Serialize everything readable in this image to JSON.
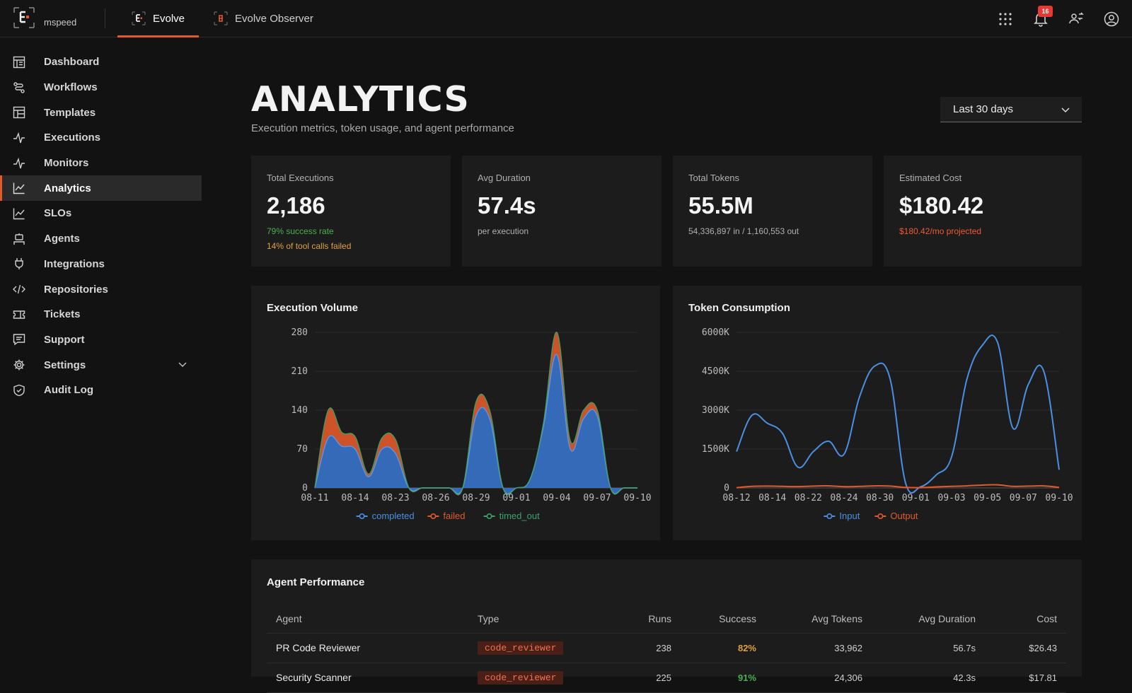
{
  "topbar": {
    "org_name": "mspeed",
    "tabs": [
      {
        "label": "Evolve",
        "active": true
      },
      {
        "label": "Evolve Observer",
        "active": false
      }
    ],
    "notification_count": "16",
    "icons": [
      "apps-grid-icon",
      "bell-icon",
      "switch-user-icon",
      "user-account-icon"
    ]
  },
  "sidebar": {
    "items": [
      {
        "label": "Dashboard",
        "icon": "dashboard-icon"
      },
      {
        "label": "Workflows",
        "icon": "workflow-icon"
      },
      {
        "label": "Templates",
        "icon": "template-icon"
      },
      {
        "label": "Executions",
        "icon": "pulse-icon"
      },
      {
        "label": "Monitors",
        "icon": "pulse-icon"
      },
      {
        "label": "Analytics",
        "icon": "chart-line-icon",
        "active": true
      },
      {
        "label": "SLOs",
        "icon": "chart-line-icon"
      },
      {
        "label": "Agents",
        "icon": "robot-icon"
      },
      {
        "label": "Integrations",
        "icon": "plug-icon"
      },
      {
        "label": "Repositories",
        "icon": "code-icon"
      },
      {
        "label": "Tickets",
        "icon": "ticket-icon"
      },
      {
        "label": "Support",
        "icon": "chat-icon"
      },
      {
        "label": "Settings",
        "icon": "gear-icon",
        "expandable": true
      },
      {
        "label": "Audit Log",
        "icon": "shield-icon"
      }
    ]
  },
  "page": {
    "title": "ANALYTICS",
    "subtitle": "Execution metrics, token usage, and agent performance",
    "range": "Last 30 days"
  },
  "stats": [
    {
      "label": "Total Executions",
      "value": "2,186",
      "line1": "79% success rate",
      "line2": "14% of tool calls failed"
    },
    {
      "label": "Avg Duration",
      "value": "57.4s",
      "line1": "per execution",
      "line2": ""
    },
    {
      "label": "Total Tokens",
      "value": "55.5M",
      "line1": "54,336,897 in / 1,160,553 out",
      "line2": ""
    },
    {
      "label": "Estimated Cost",
      "value": "$180.42",
      "line1": "$180.42/mo projected",
      "line2": ""
    }
  ],
  "colors": {
    "accent": "#e25a2c",
    "completed": "#3a78d4",
    "failed": "#e35a2a",
    "timed_out": "#3aa36b",
    "input": "#4a90e2",
    "output": "#e25a2c",
    "success_green": "#4caf50",
    "warn_yellow": "#e0a040",
    "cost_red": "#ef5a33"
  },
  "chart_data": [
    {
      "type": "area",
      "title": "Execution Volume",
      "stacked": true,
      "ylim": [
        0,
        280
      ],
      "yticks": [
        0,
        70,
        140,
        210,
        280
      ],
      "tick_labels": [
        "08-11",
        "08-14",
        "08-23",
        "08-26",
        "08-29",
        "09-01",
        "09-04",
        "09-07",
        "09-10"
      ],
      "categories": [
        "08-11",
        "08-12",
        "08-13",
        "08-14",
        "08-15",
        "08-22",
        "08-23",
        "08-24",
        "08-25",
        "08-26",
        "08-27",
        "08-28",
        "08-29",
        "08-30",
        "08-31",
        "09-01",
        "09-02",
        "09-03",
        "09-04",
        "09-05",
        "09-06",
        "09-07",
        "09-08",
        "09-09",
        "09-10"
      ],
      "series": [
        {
          "name": "completed",
          "values": [
            0,
            90,
            75,
            70,
            20,
            70,
            62,
            0,
            0,
            0,
            0,
            0,
            130,
            125,
            0,
            0,
            15,
            110,
            240,
            70,
            125,
            130,
            0,
            0,
            0
          ]
        },
        {
          "name": "failed",
          "values": [
            0,
            50,
            25,
            22,
            5,
            20,
            25,
            0,
            0,
            0,
            0,
            0,
            25,
            15,
            0,
            0,
            0,
            5,
            40,
            15,
            15,
            10,
            0,
            0,
            0
          ]
        },
        {
          "name": "timed_out",
          "values": [
            0,
            0,
            0,
            0,
            0,
            0,
            0,
            0,
            0,
            0,
            0,
            0,
            0,
            0,
            0,
            0,
            0,
            0,
            0,
            0,
            0,
            0,
            0,
            0,
            0
          ]
        }
      ]
    },
    {
      "type": "line",
      "title": "Token Consumption",
      "ylim": [
        0,
        6000
      ],
      "yticks": [
        0,
        1500,
        3000,
        4500,
        6000
      ],
      "ytick_labels": [
        "0",
        "1500K",
        "3000K",
        "4500K",
        "6000K"
      ],
      "tick_labels": [
        "08-12",
        "08-14",
        "08-22",
        "08-24",
        "08-30",
        "09-01",
        "09-03",
        "09-05",
        "09-07",
        "09-10"
      ],
      "categories": [
        "08-11",
        "08-12",
        "08-13",
        "08-14",
        "08-15",
        "08-22",
        "08-23",
        "08-24",
        "08-25",
        "08-26",
        "08-30",
        "08-31",
        "09-01",
        "09-02",
        "09-03",
        "09-04",
        "09-05",
        "09-06",
        "09-07",
        "09-08",
        "09-09",
        "09-10"
      ],
      "series": [
        {
          "name": "Input",
          "values": [
            1400,
            2800,
            2500,
            2100,
            800,
            1400,
            1800,
            1300,
            3500,
            4700,
            4200,
            200,
            50,
            500,
            1200,
            4200,
            5500,
            5600,
            2300,
            4000,
            4500,
            700
          ]
        },
        {
          "name": "Output",
          "values": [
            10,
            60,
            70,
            60,
            50,
            70,
            80,
            50,
            60,
            80,
            70,
            20,
            10,
            40,
            60,
            80,
            110,
            120,
            60,
            70,
            80,
            20
          ]
        }
      ]
    }
  ],
  "performance": {
    "title": "Agent Performance",
    "columns": [
      "Agent",
      "Type",
      "Runs",
      "Success",
      "Avg Tokens",
      "Avg Duration",
      "Cost"
    ],
    "rows": [
      {
        "agent": "PR Code Reviewer",
        "type": "code_reviewer",
        "runs": "238",
        "success": "82%",
        "avg_tokens": "33,962",
        "avg_duration": "56.7s",
        "cost": "$26.43",
        "success_color": "#e0a040"
      },
      {
        "agent": "Security Scanner",
        "type": "code_reviewer",
        "runs": "225",
        "success": "91%",
        "avg_tokens": "24,306",
        "avg_duration": "42.3s",
        "cost": "$17.81",
        "success_color": "#4caf50"
      }
    ]
  }
}
